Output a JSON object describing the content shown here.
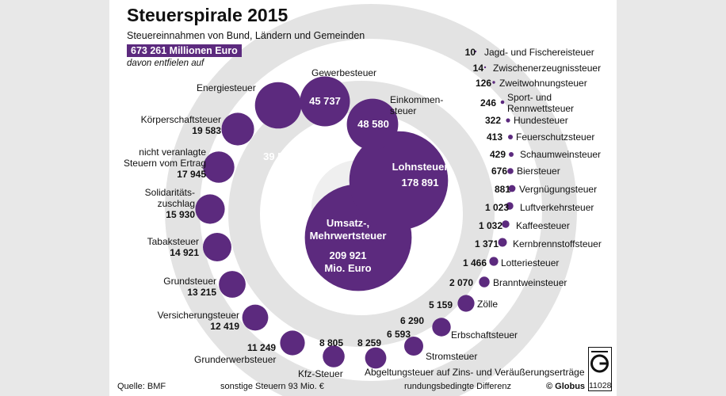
{
  "header": {
    "title": "Steuerspirale 2015",
    "subtitle": "Steuereinnahmen von Bund, Ländern und Gemeinden",
    "total": "673 261 Millionen Euro",
    "davon": "davon entfielen auf"
  },
  "footer": {
    "source": "Quelle: BMF",
    "other": "sonstige Steuern 93 Mio. €",
    "rounding": "rundungsbedingte Differenz",
    "copyright": "© Globus",
    "graphic_id": "11028"
  },
  "colors": {
    "bubble": "#5c2a7e",
    "spiral": "#e3e3e3",
    "background": "#ffffff"
  },
  "chart_data": {
    "type": "bubble",
    "unit": "Mio. Euro",
    "total": 673261,
    "items": [
      {
        "name": "Umsatz-, Mehrwertsteuer",
        "value": 209921,
        "display": "209 921"
      },
      {
        "name": "Lohnsteuer",
        "value": 178891,
        "display": "178 891"
      },
      {
        "name": "Einkommensteuer",
        "value": 48580,
        "display": "48 580"
      },
      {
        "name": "Gewerbesteuer",
        "value": 45737,
        "display": "45 737"
      },
      {
        "name": "Energiesteuer",
        "value": 39594,
        "display": "39 594"
      },
      {
        "name": "Körperschaftsteuer",
        "value": 19583,
        "display": "19 583"
      },
      {
        "name": "nicht veranlagte Steuern vom Ertrag",
        "value": 17945,
        "display": "17 945"
      },
      {
        "name": "Solidaritätszuschlag",
        "value": 15930,
        "display": "15 930"
      },
      {
        "name": "Tabaksteuer",
        "value": 14921,
        "display": "14 921"
      },
      {
        "name": "Grundsteuer",
        "value": 13215,
        "display": "13 215"
      },
      {
        "name": "Versicherungsteuer",
        "value": 12419,
        "display": "12 419"
      },
      {
        "name": "Grunderwerbsteuer",
        "value": 11249,
        "display": "11 249"
      },
      {
        "name": "Kfz-Steuer",
        "value": 8805,
        "display": "8 805"
      },
      {
        "name": "Abgeltungsteuer auf Zins- und Veräußerungserträge",
        "value": 8259,
        "display": "8 259"
      },
      {
        "name": "Stromsteuer",
        "value": 6593,
        "display": "6 593"
      },
      {
        "name": "Erbschaftsteuer",
        "value": 6290,
        "display": "6 290"
      },
      {
        "name": "Zölle",
        "value": 5159,
        "display": "5 159"
      },
      {
        "name": "Branntweinsteuer",
        "value": 2070,
        "display": "2 070"
      },
      {
        "name": "Lotteriesteuer",
        "value": 1466,
        "display": "1 466"
      },
      {
        "name": "Kernbrennstoffsteuer",
        "value": 1371,
        "display": "1 371"
      },
      {
        "name": "Kaffeesteuer",
        "value": 1032,
        "display": "1 032"
      },
      {
        "name": "Luftverkehrsteuer",
        "value": 1023,
        "display": "1 023"
      },
      {
        "name": "Vergnügungsteuer",
        "value": 881,
        "display": "881"
      },
      {
        "name": "Biersteuer",
        "value": 676,
        "display": "676"
      },
      {
        "name": "Schaumweinsteuer",
        "value": 429,
        "display": "429"
      },
      {
        "name": "Feuerschutzsteuer",
        "value": 413,
        "display": "413"
      },
      {
        "name": "Hundesteuer",
        "value": 322,
        "display": "322"
      },
      {
        "name": "Sport- und Rennwettsteuer",
        "value": 246,
        "display": "246"
      },
      {
        "name": "Zweitwohnungsteuer",
        "value": 126,
        "display": "126"
      },
      {
        "name": "Zwischenerzeugnissteuer",
        "value": 14,
        "display": "14"
      },
      {
        "name": "Jagd- und Fischereisteuer",
        "value": 10,
        "display": "10"
      }
    ],
    "labels": {
      "umsatz_1": "Umsatz-,",
      "umsatz_2": "Mehrwertsteuer",
      "umsatz_3": "Mio. Euro",
      "einkommen_1": "Einkommen-",
      "einkommen_2": "steuer",
      "nv_1": "nicht veranlagte",
      "nv_2": "Steuern vom Ertrag",
      "soli_1": "Solidaritäts-",
      "soli_2": "zuschlag",
      "sport_1": "Sport- und",
      "sport_2": "Rennwettsteuer"
    }
  }
}
